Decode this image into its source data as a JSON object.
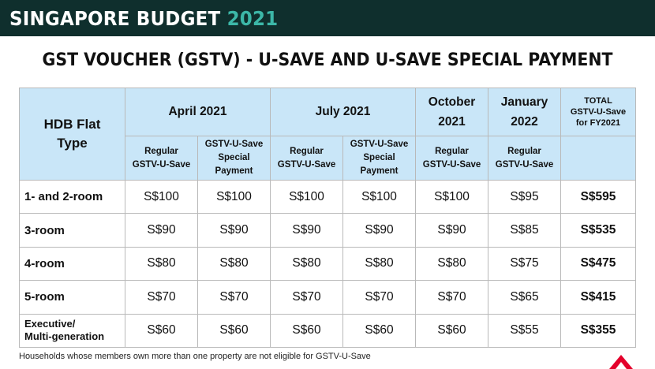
{
  "banner": {
    "title": "SINGAPORE BUDGET",
    "year": "2021",
    "accent_color": "#3cb7a8",
    "bg_color": "#0f2f2d"
  },
  "heading": "GST VOUCHER (GSTV) - U-SAVE AND U-SAVE SPECIAL PAYMENT",
  "table": {
    "header": {
      "flat_type_line1": "HDB Flat",
      "flat_type_line2": "Type",
      "april": "April 2021",
      "july": "July 2021",
      "october_line1": "October",
      "october_line2": "2021",
      "january_line1": "January",
      "january_line2": "2022",
      "total_line1": "TOTAL",
      "total_line2": "GSTV-U-Save",
      "total_line3": "for FY2021",
      "regular_line1": "Regular",
      "regular_line2": "GSTV-U-Save",
      "special_line1": "GSTV-U-Save",
      "special_line2": "Special",
      "special_line3": "Payment"
    },
    "header_bg_color": "#c9e6f8",
    "rows": [
      {
        "type": "1- and 2-room",
        "apr_regular": "S$100",
        "apr_special": "S$100",
        "jul_regular": "S$100",
        "jul_special": "S$100",
        "oct_regular": "S$100",
        "jan_regular": "S$95",
        "total": "S$595"
      },
      {
        "type": "3-room",
        "apr_regular": "S$90",
        "apr_special": "S$90",
        "jul_regular": "S$90",
        "jul_special": "S$90",
        "oct_regular": "S$90",
        "jan_regular": "S$85",
        "total": "S$535"
      },
      {
        "type": "4-room",
        "apr_regular": "S$80",
        "apr_special": "S$80",
        "jul_regular": "S$80",
        "jul_special": "S$80",
        "oct_regular": "S$80",
        "jan_regular": "S$75",
        "total": "S$475"
      },
      {
        "type": "5-room",
        "apr_regular": "S$70",
        "apr_special": "S$70",
        "jul_regular": "S$70",
        "jul_special": "S$70",
        "oct_regular": "S$70",
        "jan_regular": "S$65",
        "total": "S$415"
      },
      {
        "type_line1": "Executive/",
        "type_line2": "Multi-generation",
        "apr_regular": "S$60",
        "apr_special": "S$60",
        "jul_regular": "S$60",
        "jul_special": "S$60",
        "oct_regular": "S$60",
        "jan_regular": "S$55",
        "total": "S$355"
      }
    ]
  },
  "footnote": "Households whose members own more than one property are not eligible for GSTV-U-Save",
  "logo_icon": "cna-logo-icon",
  "logo_color": "#e4002b"
}
